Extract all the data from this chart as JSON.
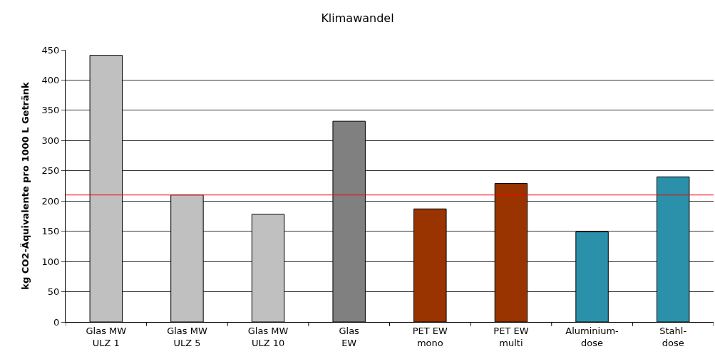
{
  "chart_data": {
    "type": "bar",
    "title": "Klimawandel",
    "ylabel": "kg CO2-Äquivalente pro 1000 L Getränk",
    "categories": [
      "Glas MW\nULZ 1",
      "Glas MW\nULZ 5",
      "Glas MW\nULZ 10",
      "Glas\nEW",
      "PET EW\nmono",
      "PET EW\nmulti",
      "Aluminium-\ndose",
      "Stahl-\ndose"
    ],
    "values": [
      441,
      210,
      178,
      332,
      187,
      229,
      149,
      240
    ],
    "colors": [
      "#c0c0c0",
      "#c0c0c0",
      "#c0c0c0",
      "#808080",
      "#993300",
      "#993300",
      "#2b91aa",
      "#2b91aa"
    ],
    "ylim": [
      0,
      450
    ],
    "yticks": [
      0,
      50,
      100,
      150,
      200,
      250,
      300,
      350,
      400,
      450
    ],
    "grid": "y",
    "ref_lines": [
      {
        "axis": "y",
        "value": 210,
        "color": "#ff0000"
      }
    ]
  }
}
